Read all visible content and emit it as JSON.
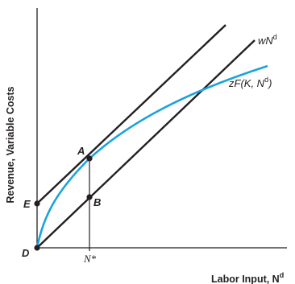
{
  "figure": {
    "y_axis_label": "Revenue, Variable Costs",
    "x_axis_label": "Labor Input, N",
    "x_axis_label_sup": "d",
    "line_label_main": "wN",
    "line_label_sup": "d",
    "curve_label": "zF(K, N",
    "curve_label_sup": "d",
    "curve_label_close": ")",
    "tick_label": "N*",
    "points": {
      "A": "A",
      "B": "B",
      "D": "D",
      "E": "E"
    },
    "colors": {
      "curve": "#1aa3dc",
      "lines": "#231f20"
    }
  }
}
